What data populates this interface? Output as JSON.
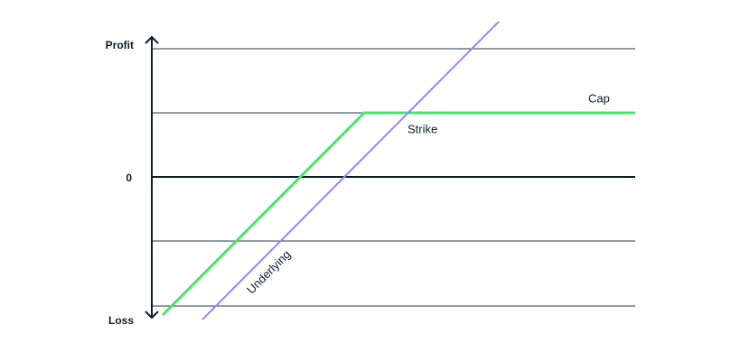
{
  "axis": {
    "top_label": "Profit",
    "zero_label": "0",
    "bottom_label": "Loss"
  },
  "lines": {
    "cap": "Cap",
    "strike": "Strike",
    "underlying": "Underlying"
  }
}
